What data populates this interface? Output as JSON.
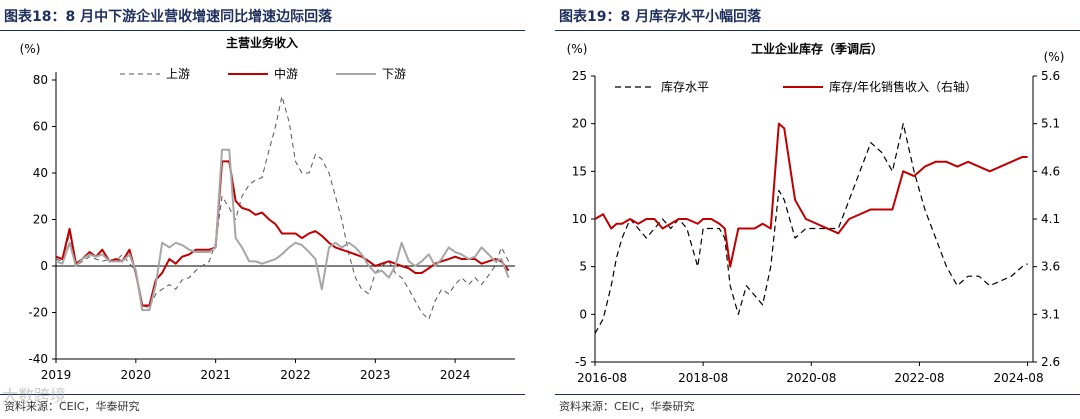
{
  "panels": [
    {
      "figure_title": "图表18：8 月中下游企业营收增速同比增速边际回落",
      "source": "资料来源：CEIC，华泰研究",
      "watermark": "大数跨境"
    },
    {
      "figure_title": "图表19：8 月库存水平小幅回落",
      "source": "资料来源：CEIC，华泰研究"
    }
  ],
  "colors": {
    "upstream": "#555555",
    "midstream": "#c00000",
    "downstream": "#a6a6a6",
    "rule": "#1f2f5c"
  },
  "chart_data": [
    {
      "type": "line",
      "title": "主营业务收入",
      "ylabel": "(%)",
      "ylim": [
        -40,
        80
      ],
      "yticks": [
        -40,
        -20,
        0,
        20,
        40,
        60,
        80
      ],
      "xlim": [
        2019.0,
        2024.75
      ],
      "xticks": [
        2019,
        2020,
        2021,
        2022,
        2023,
        2024
      ],
      "xtick_labels": [
        "2019",
        "2020",
        "2021",
        "2022",
        "2023",
        "2024"
      ],
      "legend_position": "top",
      "series": [
        {
          "name": "上游",
          "style": "dashed",
          "x": [
            2019.0,
            2019.08,
            2019.17,
            2019.25,
            2019.33,
            2019.42,
            2019.5,
            2019.58,
            2019.67,
            2019.75,
            2019.83,
            2019.92,
            2020.0,
            2020.08,
            2020.17,
            2020.25,
            2020.33,
            2020.42,
            2020.5,
            2020.58,
            2020.67,
            2020.75,
            2020.83,
            2020.92,
            2021.0,
            2021.08,
            2021.17,
            2021.25,
            2021.33,
            2021.42,
            2021.5,
            2021.58,
            2021.67,
            2021.75,
            2021.83,
            2021.92,
            2022.0,
            2022.08,
            2022.17,
            2022.25,
            2022.33,
            2022.42,
            2022.5,
            2022.58,
            2022.67,
            2022.75,
            2022.83,
            2022.92,
            2023.0,
            2023.08,
            2023.17,
            2023.25,
            2023.33,
            2023.42,
            2023.5,
            2023.58,
            2023.67,
            2023.75,
            2023.83,
            2023.92,
            2024.0,
            2024.08,
            2024.17,
            2024.25,
            2024.33,
            2024.42,
            2024.5,
            2024.58,
            2024.67
          ],
          "values": [
            3,
            2,
            14,
            0,
            2,
            4,
            3,
            2,
            3,
            2,
            5,
            1,
            -2,
            -17,
            -18,
            -12,
            -10,
            -8,
            -10,
            -6,
            -5,
            -2,
            0,
            2,
            10,
            30,
            25,
            20,
            30,
            35,
            37,
            38,
            50,
            60,
            73,
            62,
            45,
            40,
            40,
            48,
            46,
            40,
            30,
            20,
            5,
            -5,
            -10,
            -12,
            -3,
            0,
            2,
            -3,
            -5,
            -10,
            -15,
            -20,
            -23,
            -15,
            -10,
            -12,
            -8,
            -5,
            -8,
            -5,
            -8,
            -4,
            0,
            8,
            2
          ]
        },
        {
          "name": "中游",
          "style": "solid",
          "x": [
            2019.0,
            2019.08,
            2019.17,
            2019.25,
            2019.33,
            2019.42,
            2019.5,
            2019.58,
            2019.67,
            2019.75,
            2019.83,
            2019.92,
            2020.0,
            2020.08,
            2020.17,
            2020.25,
            2020.33,
            2020.42,
            2020.5,
            2020.58,
            2020.67,
            2020.75,
            2020.83,
            2020.92,
            2021.0,
            2021.08,
            2021.17,
            2021.25,
            2021.33,
            2021.42,
            2021.5,
            2021.58,
            2021.67,
            2021.75,
            2021.83,
            2021.92,
            2022.0,
            2022.08,
            2022.17,
            2022.25,
            2022.33,
            2022.42,
            2022.5,
            2022.58,
            2022.67,
            2022.75,
            2022.83,
            2022.92,
            2023.0,
            2023.08,
            2023.17,
            2023.25,
            2023.33,
            2023.42,
            2023.5,
            2023.58,
            2023.67,
            2023.75,
            2023.83,
            2023.92,
            2024.0,
            2024.08,
            2024.17,
            2024.25,
            2024.33,
            2024.42,
            2024.5,
            2024.58,
            2024.67
          ],
          "values": [
            4,
            3,
            16,
            1,
            3,
            6,
            4,
            7,
            2,
            3,
            2,
            7,
            -3,
            -17,
            -17,
            -6,
            -3,
            3,
            1,
            4,
            5,
            7,
            7,
            7,
            8,
            45,
            45,
            28,
            25,
            24,
            22,
            23,
            20,
            18,
            14,
            14,
            14,
            12,
            14,
            15,
            13,
            10,
            8,
            7,
            6,
            5,
            4,
            2,
            0,
            1,
            2,
            1,
            0,
            -1,
            -3,
            -3,
            -1,
            1,
            2,
            3,
            4,
            3,
            3,
            3,
            1,
            2,
            3,
            2,
            -2
          ]
        },
        {
          "name": "下游",
          "style": "solid",
          "x": [
            2019.0,
            2019.08,
            2019.17,
            2019.25,
            2019.33,
            2019.42,
            2019.5,
            2019.58,
            2019.67,
            2019.75,
            2019.83,
            2019.92,
            2020.0,
            2020.08,
            2020.17,
            2020.25,
            2020.33,
            2020.42,
            2020.5,
            2020.58,
            2020.67,
            2020.75,
            2020.83,
            2020.92,
            2021.0,
            2021.08,
            2021.17,
            2021.25,
            2021.33,
            2021.42,
            2021.5,
            2021.58,
            2021.67,
            2021.75,
            2021.83,
            2021.92,
            2022.0,
            2022.08,
            2022.17,
            2022.25,
            2022.33,
            2022.42,
            2022.5,
            2022.58,
            2022.67,
            2022.75,
            2022.83,
            2022.92,
            2023.0,
            2023.08,
            2023.17,
            2023.25,
            2023.33,
            2023.42,
            2023.5,
            2023.58,
            2023.67,
            2023.75,
            2023.83,
            2023.92,
            2024.0,
            2024.08,
            2024.17,
            2024.25,
            2024.33,
            2024.42,
            2024.5,
            2024.58,
            2024.67
          ],
          "values": [
            2,
            1,
            10,
            0,
            3,
            5,
            4,
            5,
            2,
            2,
            2,
            5,
            -2,
            -19,
            -19,
            -8,
            10,
            8,
            10,
            9,
            7,
            6,
            6,
            6,
            8,
            50,
            50,
            12,
            8,
            2,
            2,
            1,
            2,
            3,
            5,
            8,
            10,
            9,
            6,
            3,
            -10,
            8,
            10,
            8,
            10,
            8,
            5,
            0,
            -3,
            -2,
            -5,
            0,
            10,
            2,
            0,
            2,
            5,
            0,
            3,
            8,
            6,
            5,
            3,
            4,
            8,
            5,
            2,
            3,
            -5
          ]
        }
      ]
    },
    {
      "type": "line",
      "title": "工业企业库存（季调后）",
      "ylabel": "(%)",
      "ylabel_right": "(%)",
      "ylim": [
        -5,
        25
      ],
      "yticks": [
        -5,
        0,
        5,
        10,
        15,
        20,
        25
      ],
      "ylim_right": [
        2.6,
        5.6
      ],
      "yticks_right": [
        2.6,
        3.1,
        3.6,
        4.1,
        4.6,
        5.1,
        5.6
      ],
      "xlim": [
        2016.6,
        2024.7
      ],
      "xticks": [
        2016.6,
        2018.6,
        2020.6,
        2022.6,
        2024.6
      ],
      "xtick_labels": [
        "2016-08",
        "2018-08",
        "2020-08",
        "2022-08",
        "2024-08"
      ],
      "legend_position": "top",
      "series": [
        {
          "name": "库存水平",
          "style": "dashed",
          "axis": "left",
          "x": [
            2016.6,
            2016.75,
            2016.9,
            2017.0,
            2017.1,
            2017.25,
            2017.4,
            2017.55,
            2017.7,
            2017.85,
            2018.0,
            2018.15,
            2018.3,
            2018.5,
            2018.6,
            2018.75,
            2018.9,
            2019.0,
            2019.1,
            2019.25,
            2019.4,
            2019.55,
            2019.7,
            2019.85,
            2020.0,
            2020.1,
            2020.3,
            2020.5,
            2020.7,
            2020.9,
            2021.1,
            2021.3,
            2021.5,
            2021.7,
            2021.9,
            2022.1,
            2022.3,
            2022.5,
            2022.7,
            2022.9,
            2023.1,
            2023.3,
            2023.5,
            2023.7,
            2023.9,
            2024.1,
            2024.3,
            2024.5,
            2024.6
          ],
          "values": [
            -2,
            -0.5,
            3,
            6,
            8,
            10,
            9,
            8,
            9,
            10,
            9,
            10,
            9,
            5,
            9,
            9,
            9,
            8,
            3,
            0,
            3,
            2,
            1,
            5,
            13,
            12,
            8,
            9,
            9,
            9,
            9,
            12,
            15,
            18,
            17,
            15,
            20,
            15,
            11,
            8,
            5,
            3,
            4,
            4,
            3,
            3.5,
            4,
            5,
            5.3
          ]
        },
        {
          "name": "库存/年化销售收入（右轴）",
          "style": "solid",
          "axis": "right",
          "x": [
            2016.6,
            2016.75,
            2016.9,
            2017.0,
            2017.1,
            2017.25,
            2017.4,
            2017.55,
            2017.7,
            2017.85,
            2018.0,
            2018.15,
            2018.3,
            2018.5,
            2018.6,
            2018.75,
            2018.9,
            2019.0,
            2019.1,
            2019.25,
            2019.4,
            2019.55,
            2019.7,
            2019.85,
            2020.0,
            2020.1,
            2020.3,
            2020.5,
            2020.7,
            2020.9,
            2021.1,
            2021.3,
            2021.5,
            2021.7,
            2021.9,
            2022.1,
            2022.3,
            2022.5,
            2022.7,
            2022.9,
            2023.1,
            2023.3,
            2023.5,
            2023.7,
            2023.9,
            2024.1,
            2024.3,
            2024.5,
            2024.6
          ],
          "values": [
            4.1,
            4.15,
            4.0,
            4.05,
            4.05,
            4.1,
            4.05,
            4.1,
            4.1,
            4.0,
            4.05,
            4.1,
            4.1,
            4.05,
            4.1,
            4.1,
            4.05,
            4.0,
            3.6,
            4.0,
            4.0,
            4.0,
            4.05,
            4.0,
            5.1,
            5.05,
            4.3,
            4.1,
            4.05,
            4.0,
            3.95,
            4.1,
            4.15,
            4.2,
            4.2,
            4.2,
            4.6,
            4.55,
            4.65,
            4.7,
            4.7,
            4.65,
            4.7,
            4.65,
            4.6,
            4.65,
            4.7,
            4.75,
            4.75
          ]
        }
      ]
    }
  ]
}
